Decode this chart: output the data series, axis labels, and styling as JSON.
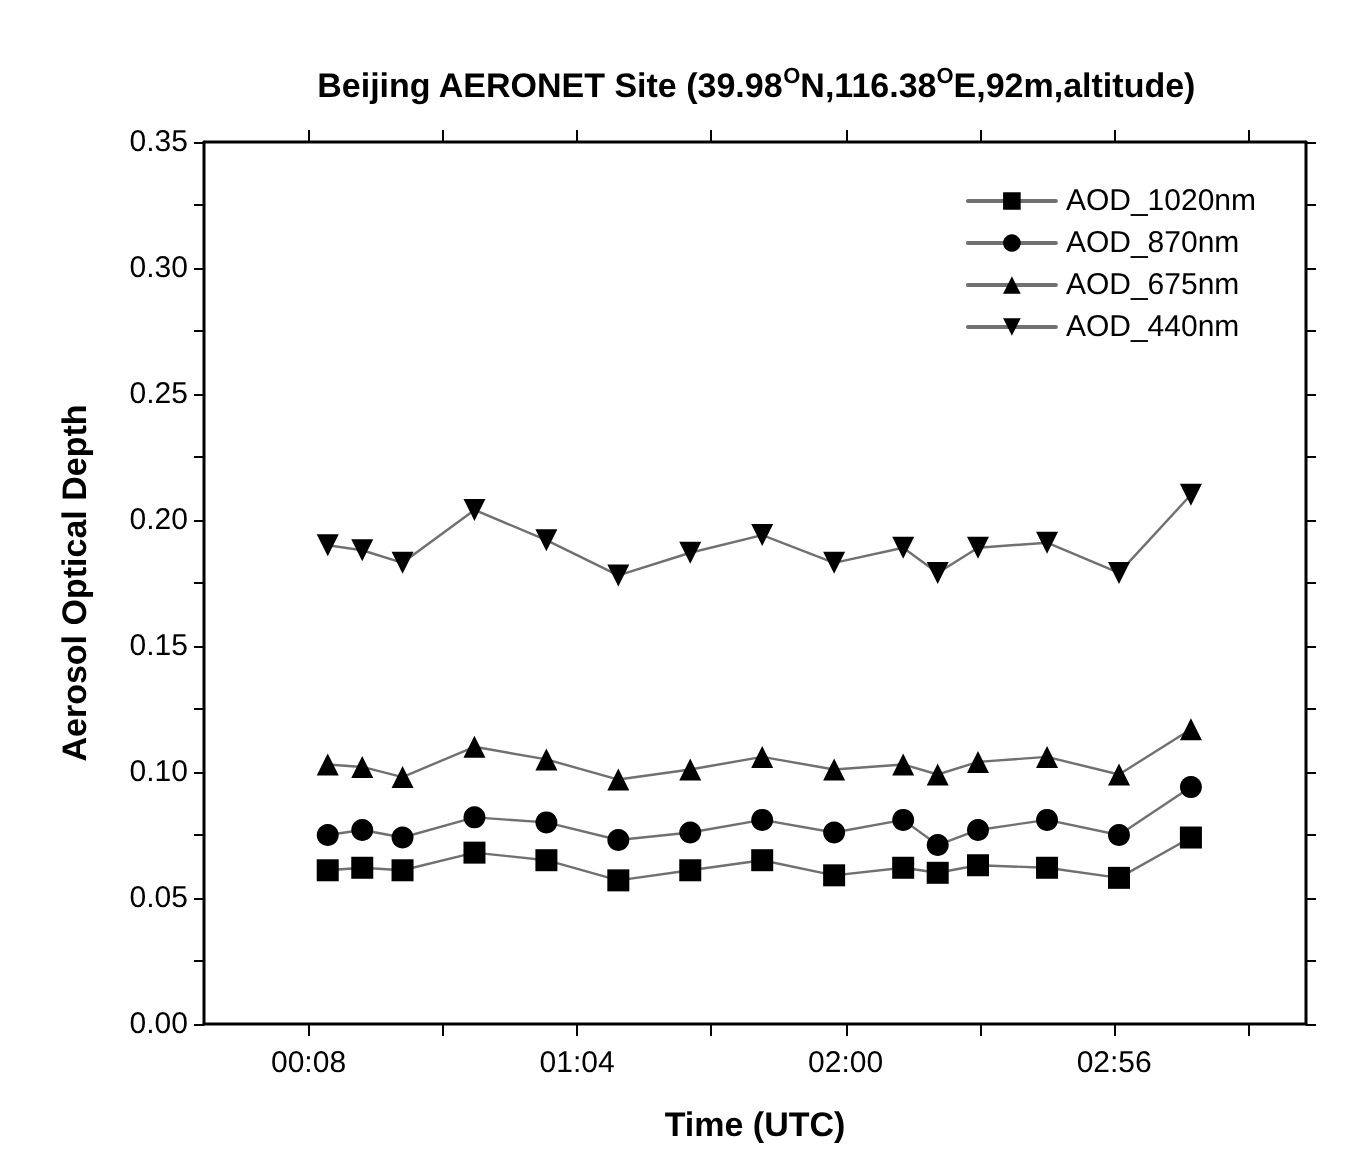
{
  "chart_data": {
    "type": "line",
    "title": "Beijing AERONET Site (39.98$^{O}$N,116.38$^{O}$E,92m,altitude)",
    "xlabel": "Time (UTC)",
    "ylabel": "Aerosol Optical Depth",
    "x": [
      0.2,
      0.32,
      0.46,
      0.71,
      0.96,
      1.21,
      1.46,
      1.71,
      1.96,
      2.2,
      2.32,
      2.46,
      2.7,
      2.95,
      3.2
    ],
    "series": [
      {
        "name": "AOD_1020nm",
        "color": "#000000",
        "marker": "square",
        "values": [
          0.061,
          0.062,
          0.061,
          0.068,
          0.065,
          0.057,
          0.061,
          0.065,
          0.059,
          0.062,
          0.06,
          0.063,
          0.062,
          0.058,
          0.074
        ]
      },
      {
        "name": "AOD_870nm",
        "color": "#000000",
        "marker": "circle",
        "values": [
          0.075,
          0.077,
          0.074,
          0.082,
          0.08,
          0.073,
          0.076,
          0.081,
          0.076,
          0.081,
          0.071,
          0.077,
          0.081,
          0.075,
          0.094
        ]
      },
      {
        "name": "AOD_675nm",
        "color": "#000000",
        "marker": "triangle",
        "values": [
          0.103,
          0.102,
          0.098,
          0.11,
          0.105,
          0.097,
          0.101,
          0.106,
          0.101,
          0.103,
          0.099,
          0.104,
          0.106,
          0.099,
          0.117
        ]
      },
      {
        "name": "AOD_440nm",
        "color": "#000000",
        "marker": "triangle-down",
        "values": [
          0.19,
          0.188,
          0.183,
          0.204,
          0.192,
          0.178,
          0.187,
          0.194,
          0.183,
          0.189,
          0.179,
          0.189,
          0.191,
          0.179,
          0.21
        ]
      }
    ],
    "xlim": [
      -0.23,
      3.6
    ],
    "xticks": [
      {
        "value": 0.1333,
        "label": "00:08"
      },
      {
        "value": 0.6,
        "label": null
      },
      {
        "value": 1.0667,
        "label": "01:04"
      },
      {
        "value": 1.5333,
        "label": null
      },
      {
        "value": 2,
        "label": "02:00"
      },
      {
        "value": 2.4667,
        "label": null
      },
      {
        "value": 2.9333,
        "label": "02:56"
      },
      {
        "value": 3.4,
        "label": null
      }
    ],
    "ylim": [
      0,
      0.35
    ],
    "yticks": [
      {
        "value": 0,
        "label": "0.00"
      },
      {
        "value": 0.025,
        "label": null
      },
      {
        "value": 0.05,
        "label": "0.05"
      },
      {
        "value": 0.075,
        "label": null
      },
      {
        "value": 0.1,
        "label": "0.10"
      },
      {
        "value": 0.125,
        "label": null
      },
      {
        "value": 0.15,
        "label": "0.15"
      },
      {
        "value": 0.175,
        "label": null
      },
      {
        "value": 0.2,
        "label": "0.20"
      },
      {
        "value": 0.225,
        "label": null
      },
      {
        "value": 0.25,
        "label": "0.25"
      },
      {
        "value": 0.275,
        "label": null
      },
      {
        "value": 0.3,
        "label": "0.30"
      },
      {
        "value": 0.325,
        "label": null
      },
      {
        "value": 0.35,
        "label": "0.35"
      }
    ],
    "grid": false,
    "legend": "top right",
    "line_style": "solid"
  }
}
